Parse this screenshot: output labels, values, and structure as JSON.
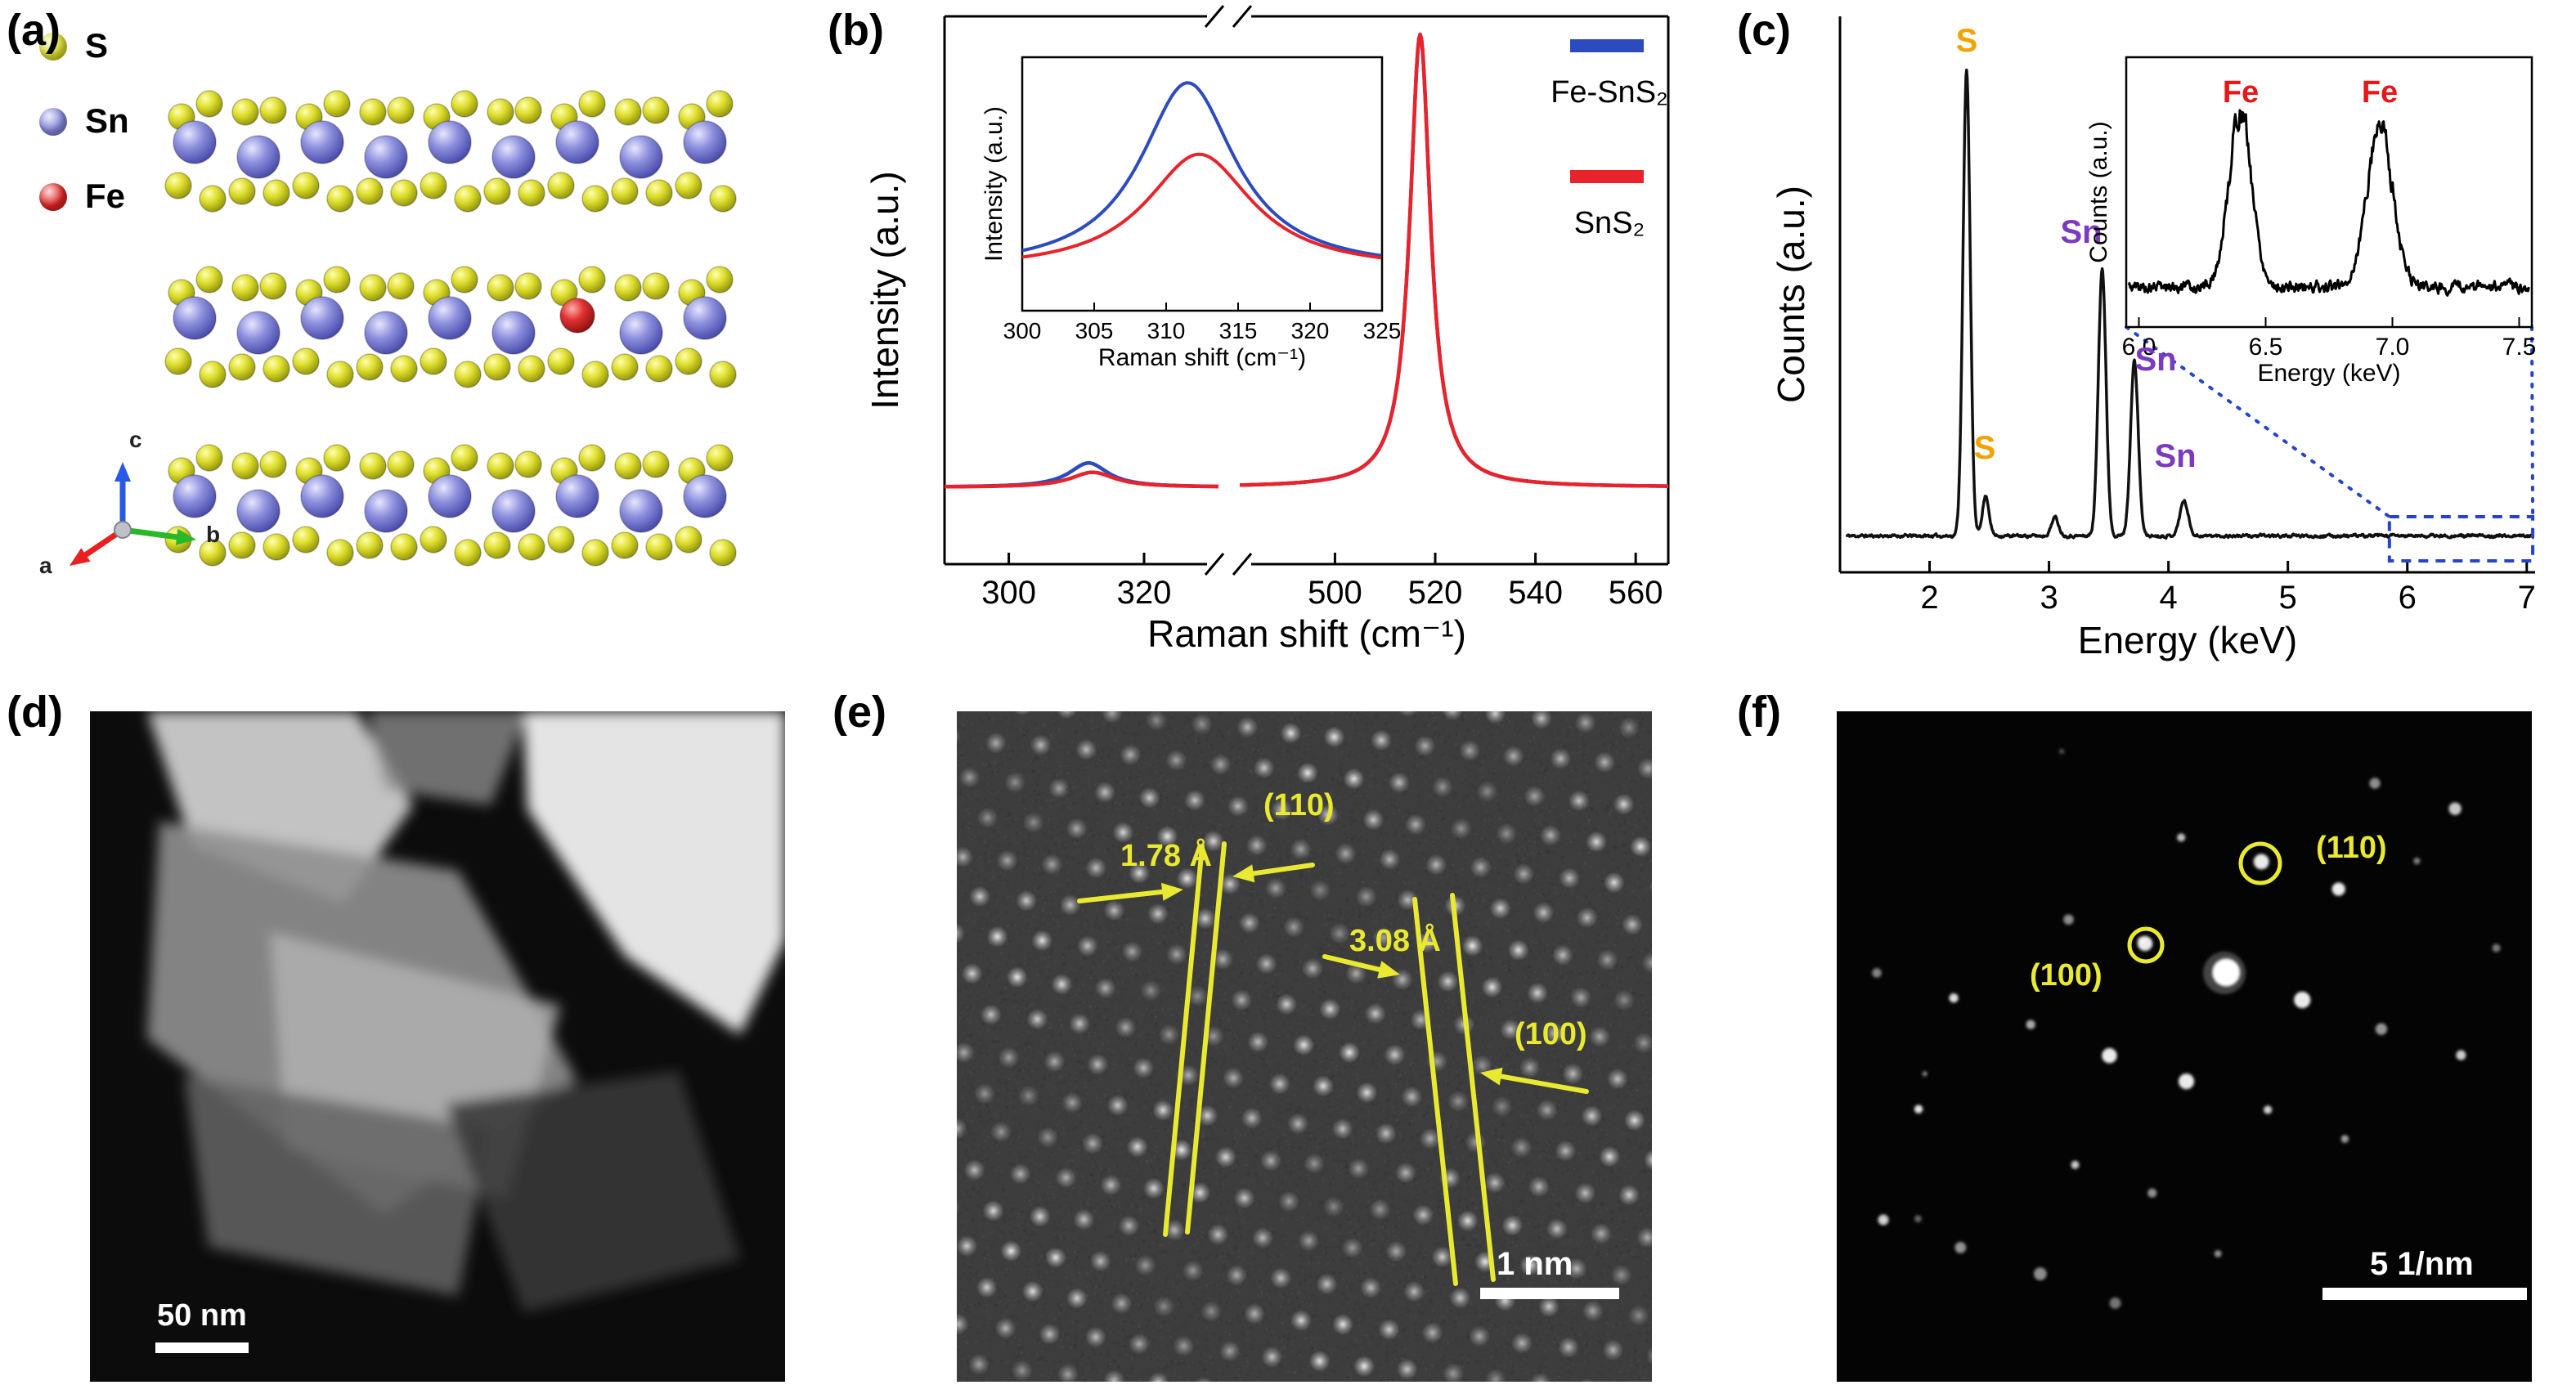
{
  "panels": {
    "a": {
      "label": "(a)",
      "legend": [
        {
          "name": "S",
          "color": "#d9dd2b"
        },
        {
          "name": "Sn",
          "color": "#8487dd"
        },
        {
          "name": "Fe",
          "color": "#e02424"
        }
      ],
      "axis_labels": [
        "a",
        "b",
        "c"
      ]
    },
    "b": {
      "label": "(b)",
      "x_title": "Raman shift (cm⁻¹)",
      "y_title": "Intensity (a.u.)",
      "legend": [
        {
          "name": "Fe-SnS₂",
          "color": "#2b4bbf"
        },
        {
          "name": "SnS₂",
          "color": "#e8232b"
        }
      ]
    },
    "c": {
      "label": "(c)",
      "x_title": "Energy (keV)",
      "y_title": "Counts (a.u.)"
    },
    "d": {
      "label": "(d)",
      "scale_bar": "50 nm"
    },
    "e": {
      "label": "(e)",
      "scale_bar": "1 nm",
      "annotation_color": "#e9e931",
      "annotations": {
        "d110_plane": "(110)",
        "d110_spacing": "1.78 Å",
        "d100_plane": "(100)",
        "d100_spacing": "3.08 Å"
      }
    },
    "f": {
      "label": "(f)",
      "scale_bar": "5 1/nm",
      "annotation_color": "#e9e931",
      "annotations": {
        "spot110": "(110)",
        "spot100": "(100)"
      }
    }
  },
  "chart_data": [
    {
      "id": "raman_main",
      "type": "line",
      "xlabel": "Raman shift (cm⁻¹)",
      "ylabel": "Intensity (a.u.)",
      "x_axis": {
        "broken": true,
        "segments": [
          {
            "range": [
              290.5,
              331
            ],
            "ticks": [
              300,
              320
            ]
          },
          {
            "range": [
              481,
              566.5
            ],
            "ticks": [
              500,
              520,
              540,
              560
            ]
          }
        ]
      },
      "baseline": 0.028,
      "series": [
        {
          "name": "Fe-SnS₂",
          "color": "#2b4bbf",
          "peaks": [
            {
              "center": 311.8,
              "height": 0.052,
              "width": 7
            },
            {
              "center": 517.0,
              "height": 0.97,
              "width": 5
            }
          ]
        },
        {
          "name": "SnS₂",
          "color": "#e8232b",
          "peaks": [
            {
              "center": 312.4,
              "height": 0.032,
              "width": 8
            },
            {
              "center": 517.0,
              "height": 0.97,
              "width": 5
            }
          ]
        }
      ]
    },
    {
      "id": "raman_inset",
      "type": "line",
      "xlabel": "Raman shift (cm⁻¹)",
      "ylabel": "Intensity (a.u.)",
      "xlim": [
        300,
        325
      ],
      "xticks": [
        300,
        305,
        310,
        315,
        320,
        325
      ],
      "baseline": 0.09,
      "series": [
        {
          "name": "Fe-SnS₂",
          "color": "#2b4bbf",
          "peaks": [
            {
              "center": 311.5,
              "height": 1.0,
              "width": 8
            }
          ]
        },
        {
          "name": "SnS₂",
          "color": "#e8232b",
          "peaks": [
            {
              "center": 312.3,
              "height": 0.62,
              "width": 9
            }
          ]
        }
      ]
    },
    {
      "id": "eds_spectrum",
      "type": "line",
      "xlabel": "Energy (keV)",
      "ylabel": "Counts (a.u.)",
      "xlim": [
        1.25,
        7.07
      ],
      "xticks": [
        2,
        3,
        4,
        5,
        6,
        7
      ],
      "line_color": "#111111",
      "peaks": [
        {
          "element": "S",
          "center": 2.31,
          "height": 1.0,
          "width": 0.03,
          "label_color": "#f0a400"
        },
        {
          "element": "S",
          "center": 2.47,
          "height": 0.085,
          "width": 0.028,
          "label_color": "#f0a400"
        },
        {
          "element": "",
          "center": 3.05,
          "height": 0.04,
          "width": 0.03,
          "label_color": ""
        },
        {
          "element": "Sn",
          "center": 3.445,
          "height": 0.575,
          "width": 0.032,
          "label_color": "#7a3bbf"
        },
        {
          "element": "Sn",
          "center": 3.715,
          "height": 0.375,
          "width": 0.032,
          "label_color": "#7a3bbf"
        },
        {
          "element": "Sn",
          "center": 4.13,
          "height": 0.075,
          "width": 0.035,
          "label_color": "#7a3bbf"
        }
      ],
      "callout_range": [
        5.85,
        7.05
      ],
      "callout_color": "#2743c8"
    },
    {
      "id": "eds_inset",
      "type": "line",
      "xlabel": "Energy (keV)",
      "ylabel": "Counts (a.u.)",
      "xlim": [
        5.95,
        7.55
      ],
      "xticks": [
        "6.0",
        "6.5",
        "7.0",
        "7.5"
      ],
      "peaks": [
        {
          "element": "Fe",
          "center": 6.4,
          "height": 0.72,
          "width": 0.045,
          "label_color": "#e81717"
        },
        {
          "element": "Fe",
          "center": 6.95,
          "height": 0.67,
          "width": 0.05,
          "label_color": "#e81717"
        }
      ]
    }
  ]
}
